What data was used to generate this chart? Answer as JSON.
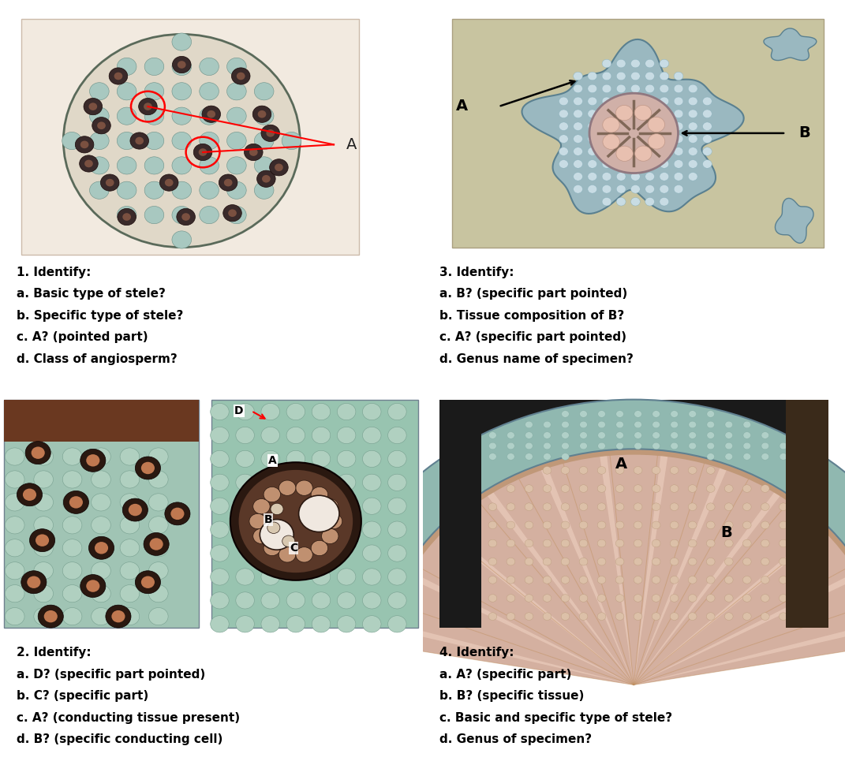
{
  "layout": {
    "rows": 2,
    "cols": 2,
    "figsize": [
      10.71,
      9.65
    ],
    "bg_color": "#ffffff"
  },
  "panels": {
    "p1": {
      "text_lines": [
        "1. Identify:",
        "a. Basic type of stele?",
        "b. Specific type of stele?",
        "c. A? (pointed part)",
        "d. Class of angiosperm?"
      ]
    },
    "p2": {
      "text_lines": [
        "2. Identify:",
        "a. D? (specific part pointed)",
        "b. C? (specific part)",
        "c. A? (conducting tissue present)",
        "d. B? (specific conducting cell)"
      ]
    },
    "p3": {
      "text_lines": [
        "3. Identify:",
        "a. B? (specific part pointed)",
        "b. Tissue composition of B?",
        "c. A? (specific part pointed)",
        "d. Genus name of specimen?"
      ]
    },
    "p4": {
      "text_lines": [
        "4. Identify:",
        "a. A? (specific part)",
        "b. B? (specific tissue)",
        "c. Basic and specific type of stele?",
        "d. Genus of specimen?"
      ]
    }
  },
  "text_fontsize": 11,
  "text_weight": "bold"
}
